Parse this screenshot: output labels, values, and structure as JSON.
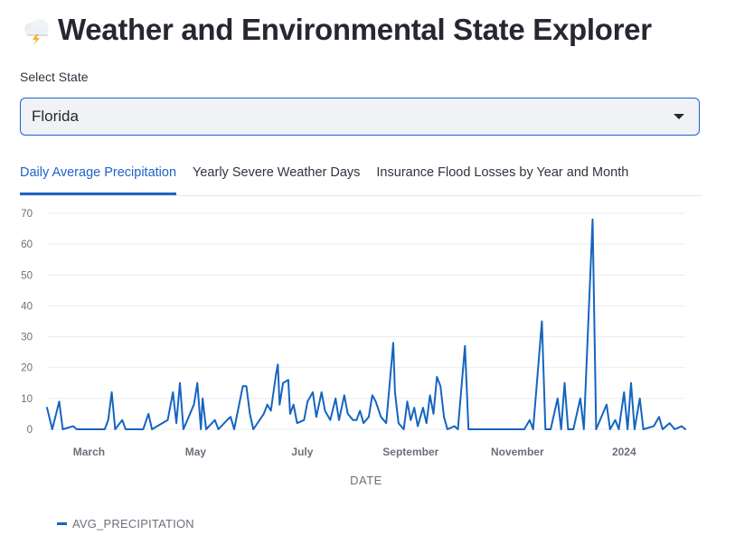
{
  "header": {
    "icon": "cloud-lightning-icon",
    "title": "Weather and Environmental State Explorer"
  },
  "state_select": {
    "label": "Select State",
    "value": "Florida"
  },
  "tabs": [
    {
      "label": "Daily Average Precipitation",
      "active": true
    },
    {
      "label": "Yearly Severe Weather Days",
      "active": false
    },
    {
      "label": "Insurance Flood Losses by Year and Month",
      "active": false
    }
  ],
  "colors": {
    "accent": "#1f63c6",
    "series": "#1565c0"
  },
  "chart_data": {
    "type": "line",
    "xlabel": "DATE",
    "ylabel": "",
    "x_ticks": [
      "March",
      "May",
      "July",
      "September",
      "November",
      "2024"
    ],
    "x_range": [
      "2023-02-05",
      "2024-02-05"
    ],
    "ylim": [
      0,
      70
    ],
    "y_ticks": [
      0,
      10,
      20,
      30,
      40,
      50,
      60,
      70
    ],
    "grid": true,
    "legend_position": "bottom-left",
    "series": [
      {
        "name": "AVG_PRECIPITATION",
        "points": [
          [
            "2023-02-05",
            7
          ],
          [
            "2023-02-08",
            0
          ],
          [
            "2023-02-12",
            9
          ],
          [
            "2023-02-14",
            0
          ],
          [
            "2023-02-20",
            1
          ],
          [
            "2023-02-22",
            0
          ],
          [
            "2023-03-10",
            0
          ],
          [
            "2023-03-12",
            3
          ],
          [
            "2023-03-14",
            12
          ],
          [
            "2023-03-16",
            0
          ],
          [
            "2023-03-20",
            3
          ],
          [
            "2023-03-22",
            0
          ],
          [
            "2023-04-01",
            0
          ],
          [
            "2023-04-04",
            5
          ],
          [
            "2023-04-06",
            0
          ],
          [
            "2023-04-15",
            3
          ],
          [
            "2023-04-18",
            12
          ],
          [
            "2023-04-20",
            2
          ],
          [
            "2023-04-22",
            15
          ],
          [
            "2023-04-24",
            0
          ],
          [
            "2023-04-30",
            8
          ],
          [
            "2023-05-02",
            15
          ],
          [
            "2023-05-04",
            0
          ],
          [
            "2023-05-05",
            10
          ],
          [
            "2023-05-07",
            0
          ],
          [
            "2023-05-12",
            3
          ],
          [
            "2023-05-14",
            0
          ],
          [
            "2023-05-19",
            3
          ],
          [
            "2023-05-21",
            4
          ],
          [
            "2023-05-23",
            0
          ],
          [
            "2023-05-28",
            14
          ],
          [
            "2023-05-30",
            14
          ],
          [
            "2023-06-01",
            5
          ],
          [
            "2023-06-03",
            0
          ],
          [
            "2023-06-09",
            5
          ],
          [
            "2023-06-11",
            8
          ],
          [
            "2023-06-13",
            6
          ],
          [
            "2023-06-16",
            18
          ],
          [
            "2023-06-17",
            21
          ],
          [
            "2023-06-18",
            8
          ],
          [
            "2023-06-20",
            15
          ],
          [
            "2023-06-23",
            16
          ],
          [
            "2023-06-24",
            5
          ],
          [
            "2023-06-26",
            8
          ],
          [
            "2023-06-28",
            2
          ],
          [
            "2023-07-02",
            3
          ],
          [
            "2023-07-04",
            9
          ],
          [
            "2023-07-07",
            12
          ],
          [
            "2023-07-09",
            4
          ],
          [
            "2023-07-12",
            12
          ],
          [
            "2023-07-14",
            6
          ],
          [
            "2023-07-17",
            3
          ],
          [
            "2023-07-20",
            10
          ],
          [
            "2023-07-22",
            3
          ],
          [
            "2023-07-25",
            11
          ],
          [
            "2023-07-27",
            5
          ],
          [
            "2023-07-30",
            3
          ],
          [
            "2023-08-01",
            3
          ],
          [
            "2023-08-03",
            6
          ],
          [
            "2023-08-05",
            2
          ],
          [
            "2023-08-08",
            4
          ],
          [
            "2023-08-10",
            11
          ],
          [
            "2023-08-12",
            9
          ],
          [
            "2023-08-15",
            4
          ],
          [
            "2023-08-18",
            2
          ],
          [
            "2023-08-22",
            28
          ],
          [
            "2023-08-23",
            12
          ],
          [
            "2023-08-25",
            2
          ],
          [
            "2023-08-28",
            0
          ],
          [
            "2023-08-30",
            9
          ],
          [
            "2023-09-01",
            3
          ],
          [
            "2023-09-03",
            7
          ],
          [
            "2023-09-05",
            1
          ],
          [
            "2023-09-08",
            7
          ],
          [
            "2023-09-10",
            2
          ],
          [
            "2023-09-12",
            11
          ],
          [
            "2023-09-14",
            5
          ],
          [
            "2023-09-16",
            17
          ],
          [
            "2023-09-18",
            14
          ],
          [
            "2023-09-20",
            4
          ],
          [
            "2023-09-22",
            0
          ],
          [
            "2023-09-26",
            1
          ],
          [
            "2023-09-28",
            0
          ],
          [
            "2023-10-02",
            27
          ],
          [
            "2023-10-04",
            0
          ],
          [
            "2023-10-10",
            0
          ],
          [
            "2023-10-30",
            0
          ],
          [
            "2023-11-05",
            0
          ],
          [
            "2023-11-08",
            3
          ],
          [
            "2023-11-10",
            0
          ],
          [
            "2023-11-15",
            35
          ],
          [
            "2023-11-17",
            0
          ],
          [
            "2023-11-20",
            0
          ],
          [
            "2023-11-24",
            10
          ],
          [
            "2023-11-26",
            0
          ],
          [
            "2023-11-28",
            15
          ],
          [
            "2023-11-30",
            0
          ],
          [
            "2023-12-03",
            0
          ],
          [
            "2023-12-07",
            10
          ],
          [
            "2023-12-09",
            0
          ],
          [
            "2023-12-14",
            68
          ],
          [
            "2023-12-16",
            0
          ],
          [
            "2023-12-22",
            8
          ],
          [
            "2023-12-24",
            0
          ],
          [
            "2023-12-27",
            3
          ],
          [
            "2023-12-29",
            0
          ],
          [
            "2024-01-01",
            12
          ],
          [
            "2024-01-03",
            0
          ],
          [
            "2024-01-05",
            15
          ],
          [
            "2024-01-07",
            0
          ],
          [
            "2024-01-10",
            10
          ],
          [
            "2024-01-12",
            0
          ],
          [
            "2024-01-18",
            1
          ],
          [
            "2024-01-21",
            4
          ],
          [
            "2024-01-23",
            0
          ],
          [
            "2024-01-27",
            2
          ],
          [
            "2024-01-30",
            0
          ],
          [
            "2024-02-03",
            1
          ],
          [
            "2024-02-05",
            0
          ]
        ]
      }
    ]
  }
}
